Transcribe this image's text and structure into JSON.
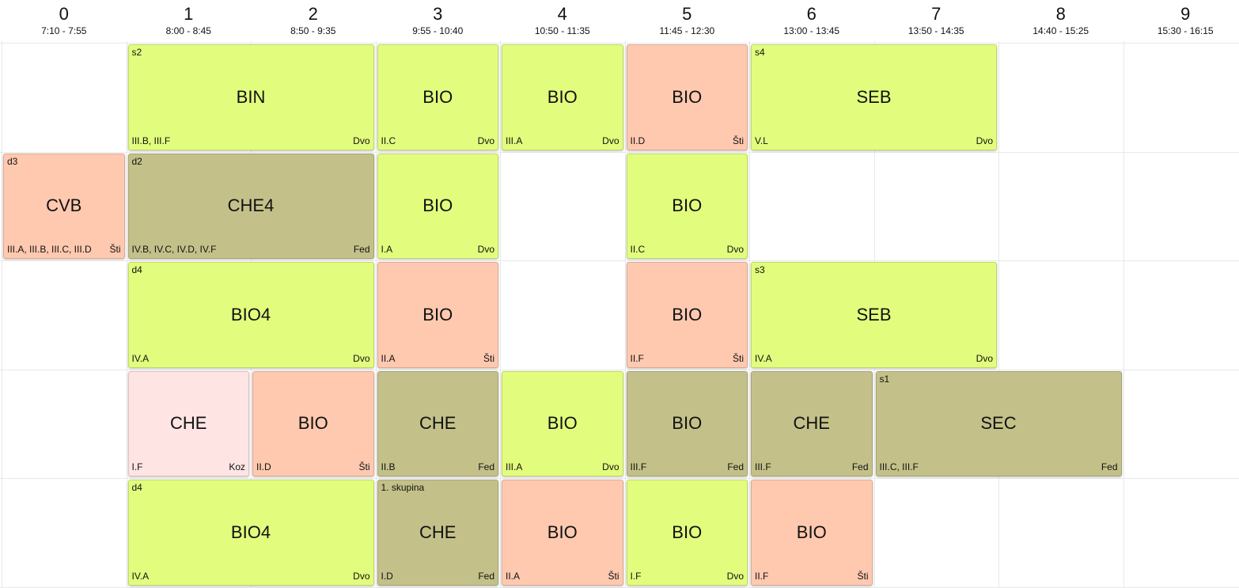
{
  "colors": {
    "green": "#e2fd7e",
    "salmon": "#ffc9b0",
    "olive": "#c3c189",
    "pink": "#ffe4e4"
  },
  "periods": [
    {
      "num": "0",
      "time": "7:10 - 7:55"
    },
    {
      "num": "1",
      "time": "8:00 - 8:45"
    },
    {
      "num": "2",
      "time": "8:50 - 9:35"
    },
    {
      "num": "3",
      "time": "9:55 - 10:40"
    },
    {
      "num": "4",
      "time": "10:50 - 11:35"
    },
    {
      "num": "5",
      "time": "11:45 - 12:30"
    },
    {
      "num": "6",
      "time": "13:00 - 13:45"
    },
    {
      "num": "7",
      "time": "13:50 - 14:35"
    },
    {
      "num": "8",
      "time": "14:40 - 15:25"
    },
    {
      "num": "9",
      "time": "15:30 - 16:15"
    }
  ],
  "lessons": [
    {
      "row": 0,
      "start": 1,
      "span": 2,
      "color": "green",
      "group": "s2",
      "subject": "BIN",
      "classes": "III.B, III.F",
      "teacher": "Dvo"
    },
    {
      "row": 0,
      "start": 3,
      "span": 1,
      "color": "green",
      "group": "",
      "subject": "BIO",
      "classes": "II.C",
      "teacher": "Dvo"
    },
    {
      "row": 0,
      "start": 4,
      "span": 1,
      "color": "green",
      "group": "",
      "subject": "BIO",
      "classes": "III.A",
      "teacher": "Dvo"
    },
    {
      "row": 0,
      "start": 5,
      "span": 1,
      "color": "salmon",
      "group": "",
      "subject": "BIO",
      "classes": "II.D",
      "teacher": "Šti"
    },
    {
      "row": 0,
      "start": 6,
      "span": 2,
      "color": "green",
      "group": "s4",
      "subject": "SEB",
      "classes": "V.L",
      "teacher": "Dvo"
    },
    {
      "row": 1,
      "start": 0,
      "span": 1,
      "color": "salmon",
      "group": "d3",
      "subject": "CVB",
      "classes": "III.A, III.B, III.C, III.D",
      "teacher": "Šti"
    },
    {
      "row": 1,
      "start": 1,
      "span": 2,
      "color": "olive",
      "group": "d2",
      "subject": "CHE4",
      "classes": "IV.B, IV.C, IV.D, IV.F",
      "teacher": "Fed"
    },
    {
      "row": 1,
      "start": 3,
      "span": 1,
      "color": "green",
      "group": "",
      "subject": "BIO",
      "classes": "I.A",
      "teacher": "Dvo"
    },
    {
      "row": 1,
      "start": 5,
      "span": 1,
      "color": "green",
      "group": "",
      "subject": "BIO",
      "classes": "II.C",
      "teacher": "Dvo"
    },
    {
      "row": 2,
      "start": 1,
      "span": 2,
      "color": "green",
      "group": "d4",
      "subject": "BIO4",
      "classes": "IV.A",
      "teacher": "Dvo"
    },
    {
      "row": 2,
      "start": 3,
      "span": 1,
      "color": "salmon",
      "group": "",
      "subject": "BIO",
      "classes": "II.A",
      "teacher": "Šti"
    },
    {
      "row": 2,
      "start": 5,
      "span": 1,
      "color": "salmon",
      "group": "",
      "subject": "BIO",
      "classes": "II.F",
      "teacher": "Šti"
    },
    {
      "row": 2,
      "start": 6,
      "span": 2,
      "color": "green",
      "group": "s3",
      "subject": "SEB",
      "classes": "IV.A",
      "teacher": "Dvo"
    },
    {
      "row": 3,
      "start": 1,
      "span": 1,
      "color": "pink",
      "group": "",
      "subject": "CHE",
      "classes": "I.F",
      "teacher": "Koz"
    },
    {
      "row": 3,
      "start": 2,
      "span": 1,
      "color": "salmon",
      "group": "",
      "subject": "BIO",
      "classes": "II.D",
      "teacher": "Šti"
    },
    {
      "row": 3,
      "start": 3,
      "span": 1,
      "color": "olive",
      "group": "",
      "subject": "CHE",
      "classes": "II.B",
      "teacher": "Fed"
    },
    {
      "row": 3,
      "start": 4,
      "span": 1,
      "color": "green",
      "group": "",
      "subject": "BIO",
      "classes": "III.A",
      "teacher": "Dvo"
    },
    {
      "row": 3,
      "start": 5,
      "span": 1,
      "color": "olive",
      "group": "",
      "subject": "BIO",
      "classes": "III.F",
      "teacher": "Fed"
    },
    {
      "row": 3,
      "start": 6,
      "span": 1,
      "color": "olive",
      "group": "",
      "subject": "CHE",
      "classes": "III.F",
      "teacher": "Fed"
    },
    {
      "row": 3,
      "start": 7,
      "span": 2,
      "color": "olive",
      "group": "s1",
      "subject": "SEC",
      "classes": "III.C, III.F",
      "teacher": "Fed"
    },
    {
      "row": 4,
      "start": 1,
      "span": 2,
      "color": "green",
      "group": "d4",
      "subject": "BIO4",
      "classes": "IV.A",
      "teacher": "Dvo"
    },
    {
      "row": 4,
      "start": 3,
      "span": 1,
      "color": "olive",
      "group": "1. skupina",
      "subject": "CHE",
      "classes": "I.D",
      "teacher": "Fed"
    },
    {
      "row": 4,
      "start": 4,
      "span": 1,
      "color": "salmon",
      "group": "",
      "subject": "BIO",
      "classes": "II.A",
      "teacher": "Šti"
    },
    {
      "row": 4,
      "start": 5,
      "span": 1,
      "color": "green",
      "group": "",
      "subject": "BIO",
      "classes": "I.F",
      "teacher": "Dvo"
    },
    {
      "row": 4,
      "start": 6,
      "span": 1,
      "color": "salmon",
      "group": "",
      "subject": "BIO",
      "classes": "II.F",
      "teacher": "Šti"
    }
  ]
}
